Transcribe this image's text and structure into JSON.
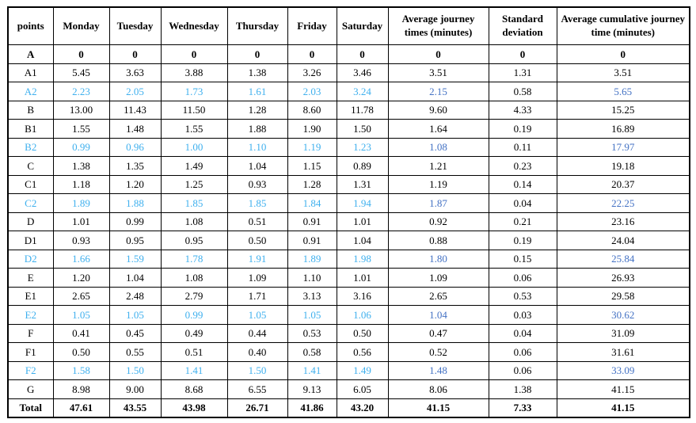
{
  "colors": {
    "highlight_light_blue": "#3FB0EE",
    "highlight_royal_blue": "#4472C4",
    "text": "#000000",
    "border": "#000000",
    "background": "#FFFFFF"
  },
  "chart_data": {
    "type": "table",
    "title": "",
    "columns": [
      "points",
      "Monday",
      "Tuesday",
      "Wednesday",
      "Thursday",
      "Friday",
      "Saturday",
      "Average journey times (minutes)",
      "Standard deviation",
      "Average cumulative journey time (minutes)"
    ],
    "rows": [
      {
        "label": "A",
        "values": [
          "0",
          "0",
          "0",
          "0",
          "0",
          "0",
          "0",
          "0",
          "0"
        ],
        "highlight": false,
        "bold": true
      },
      {
        "label": "A1",
        "values": [
          "5.45",
          "3.63",
          "3.88",
          "1.38",
          "3.26",
          "3.46",
          "3.51",
          "1.31",
          "3.51"
        ],
        "highlight": false,
        "bold": false
      },
      {
        "label": "A2",
        "values": [
          "2.23",
          "2.05",
          "1.73",
          "1.61",
          "2.03",
          "3.24",
          "2.15",
          "0.58",
          "5.65"
        ],
        "highlight": true,
        "bold": false
      },
      {
        "label": "B",
        "values": [
          "13.00",
          "11.43",
          "11.50",
          "1.28",
          "8.60",
          "11.78",
          "9.60",
          "4.33",
          "15.25"
        ],
        "highlight": false,
        "bold": false
      },
      {
        "label": "B1",
        "values": [
          "1.55",
          "1.48",
          "1.55",
          "1.88",
          "1.90",
          "1.50",
          "1.64",
          "0.19",
          "16.89"
        ],
        "highlight": false,
        "bold": false
      },
      {
        "label": "B2",
        "values": [
          "0.99",
          "0.96",
          "1.00",
          "1.10",
          "1.19",
          "1.23",
          "1.08",
          "0.11",
          "17.97"
        ],
        "highlight": true,
        "bold": false
      },
      {
        "label": "C",
        "values": [
          "1.38",
          "1.35",
          "1.49",
          "1.04",
          "1.15",
          "0.89",
          "1.21",
          "0.23",
          "19.18"
        ],
        "highlight": false,
        "bold": false
      },
      {
        "label": "C1",
        "values": [
          "1.18",
          "1.20",
          "1.25",
          "0.93",
          "1.28",
          "1.31",
          "1.19",
          "0.14",
          "20.37"
        ],
        "highlight": false,
        "bold": false
      },
      {
        "label": "C2",
        "values": [
          "1.89",
          "1.88",
          "1.85",
          "1.85",
          "1.84",
          "1.94",
          "1.87",
          "0.04",
          "22.25"
        ],
        "highlight": true,
        "bold": false
      },
      {
        "label": "D",
        "values": [
          "1.01",
          "0.99",
          "1.08",
          "0.51",
          "0.91",
          "1.01",
          "0.92",
          "0.21",
          "23.16"
        ],
        "highlight": false,
        "bold": false
      },
      {
        "label": "D1",
        "values": [
          "0.93",
          "0.95",
          "0.95",
          "0.50",
          "0.91",
          "1.04",
          "0.88",
          "0.19",
          "24.04"
        ],
        "highlight": false,
        "bold": false
      },
      {
        "label": "D2",
        "values": [
          "1.66",
          "1.59",
          "1.78",
          "1.91",
          "1.89",
          "1.98",
          "1.80",
          "0.15",
          "25.84"
        ],
        "highlight": true,
        "bold": false
      },
      {
        "label": "E",
        "values": [
          "1.20",
          "1.04",
          "1.08",
          "1.09",
          "1.10",
          "1.01",
          "1.09",
          "0.06",
          "26.93"
        ],
        "highlight": false,
        "bold": false
      },
      {
        "label": "E1",
        "values": [
          "2.65",
          "2.48",
          "2.79",
          "1.71",
          "3.13",
          "3.16",
          "2.65",
          "0.53",
          "29.58"
        ],
        "highlight": false,
        "bold": false
      },
      {
        "label": "E2",
        "values": [
          "1.05",
          "1.05",
          "0.99",
          "1.05",
          "1.05",
          "1.06",
          "1.04",
          "0.03",
          "30.62"
        ],
        "highlight": true,
        "bold": false
      },
      {
        "label": "F",
        "values": [
          "0.41",
          "0.45",
          "0.49",
          "0.44",
          "0.53",
          "0.50",
          "0.47",
          "0.04",
          "31.09"
        ],
        "highlight": false,
        "bold": false
      },
      {
        "label": "F1",
        "values": [
          "0.50",
          "0.55",
          "0.51",
          "0.40",
          "0.58",
          "0.56",
          "0.52",
          "0.06",
          "31.61"
        ],
        "highlight": false,
        "bold": false
      },
      {
        "label": "F2",
        "values": [
          "1.58",
          "1.50",
          "1.41",
          "1.50",
          "1.41",
          "1.49",
          "1.48",
          "0.06",
          "33.09"
        ],
        "highlight": true,
        "bold": false
      },
      {
        "label": "G",
        "values": [
          "8.98",
          "9.00",
          "8.68",
          "6.55",
          "9.13",
          "6.05",
          "8.06",
          "1.38",
          "41.15"
        ],
        "highlight": false,
        "bold": false
      },
      {
        "label": "Total",
        "values": [
          "47.61",
          "43.55",
          "43.98",
          "26.71",
          "41.86",
          "43.20",
          "41.15",
          "7.33",
          "41.15"
        ],
        "highlight": false,
        "bold": true
      }
    ]
  }
}
